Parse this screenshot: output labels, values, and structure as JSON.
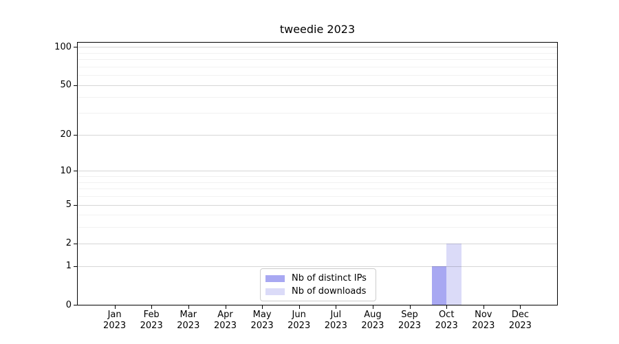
{
  "chart_data": {
    "type": "bar",
    "title": "tweedie 2023",
    "categories": [
      "Jan",
      "Feb",
      "Mar",
      "Apr",
      "May",
      "Jun",
      "Jul",
      "Aug",
      "Sep",
      "Oct",
      "Nov",
      "Dec"
    ],
    "category_year": "2023",
    "series": [
      {
        "name": "Nb of distinct IPs",
        "color": "#a8a8f2",
        "values": [
          0,
          0,
          0,
          0,
          0,
          0,
          0,
          0,
          0,
          1,
          0,
          0
        ]
      },
      {
        "name": "Nb of downloads",
        "color": "#dbdbf8",
        "values": [
          0,
          0,
          0,
          0,
          0,
          0,
          0,
          0,
          0,
          2,
          0,
          0
        ]
      }
    ],
    "yscale": "log1p",
    "ylim": [
      0,
      108
    ],
    "yticks": [
      0,
      1,
      2,
      5,
      10,
      20,
      50,
      100
    ],
    "yticks_minor": [
      3,
      4,
      6,
      7,
      8,
      9,
      30,
      40,
      60,
      70,
      80,
      90
    ],
    "grid": "on",
    "legend_position": "lower center"
  },
  "colors": {
    "axis": "#000000",
    "grid_major": "rgba(0,0,0,0.16)",
    "grid_minor": "rgba(0,0,0,0.055)",
    "legend_border": "#cccccc",
    "background": "#ffffff"
  }
}
